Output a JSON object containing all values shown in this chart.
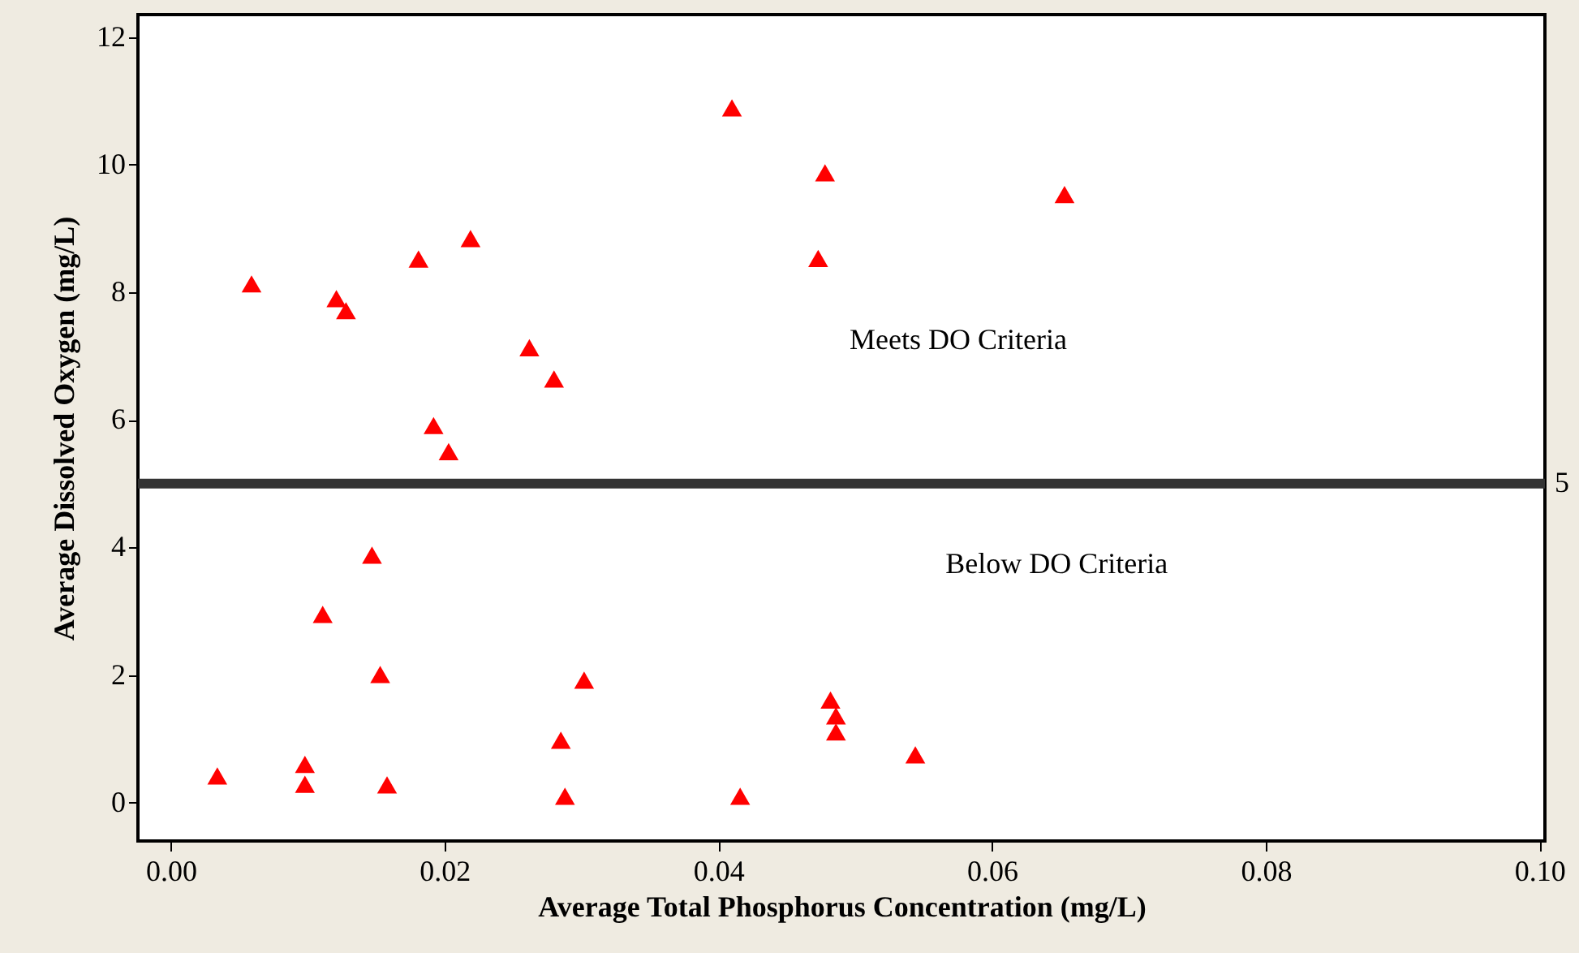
{
  "chart_data": {
    "type": "scatter",
    "xlabel": "Average Total Phosphorus Concentration (mg/L)",
    "ylabel": "Average Dissolved Oxygen (mg/L)",
    "x": [
      0.041,
      0.0478,
      0.0473,
      0.0219,
      0.0181,
      0.0059,
      0.0121,
      0.0128,
      0.0262,
      0.028,
      0.0192,
      0.0203,
      0.0653,
      0.0147,
      0.0111,
      0.0153,
      0.0302,
      0.0482,
      0.0486,
      0.0486,
      0.0285,
      0.0098,
      0.0034,
      0.0098,
      0.0158,
      0.0288,
      0.0416,
      0.0544
    ],
    "series": [
      {
        "color": "#ff0000",
        "values": [
          10.89,
          9.87,
          8.53,
          8.84,
          8.52,
          8.13,
          7.9,
          7.71,
          7.13,
          6.64,
          5.91,
          5.5,
          9.53,
          3.88,
          2.95,
          2.01,
          1.92,
          1.61,
          1.36,
          1.11,
          0.98,
          0.6,
          0.42,
          0.29,
          0.28,
          0.1,
          0.1,
          0.75
        ]
      }
    ],
    "marker": "triangle",
    "xlim": [
      -0.0024,
      0.1004
    ],
    "ylim": [
      -0.6,
      12.35
    ],
    "xticks": [
      {
        "value": 0,
        "label": "0.00"
      },
      {
        "value": 0.02,
        "label": "0.02"
      },
      {
        "value": 0.04,
        "label": "0.04"
      },
      {
        "value": 0.06,
        "label": "0.06"
      },
      {
        "value": 0.08,
        "label": "0.08"
      },
      {
        "value": 0.1,
        "label": "0.10"
      }
    ],
    "yticks": [
      0,
      2,
      4,
      6,
      8,
      10,
      12
    ],
    "ref_lines": [
      {
        "axis": "y",
        "value": 5,
        "label": "5",
        "color": "#333333"
      }
    ],
    "annotations": [
      "Meets DO Criteria",
      "Below DO Criteria"
    ],
    "grid": false
  }
}
